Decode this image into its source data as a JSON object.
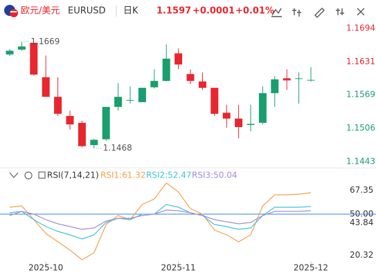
{
  "header": {
    "symbol_name": "欧元/美元",
    "symbol": "EURUSD",
    "period": "日K",
    "price": 1.1597,
    "change": "+0.0001",
    "change_pct": "+0.01%"
  },
  "chart_data": [
    {
      "type": "candlestick",
      "open": [
        1.1645,
        1.1654,
        1.1667,
        1.1602,
        1.1565,
        1.1529,
        1.1516,
        1.1474,
        1.1485,
        1.1546,
        1.1558,
        1.1555,
        1.1583,
        1.1595,
        1.1647,
        1.1608,
        1.1594,
        1.1582,
        1.1535,
        1.1524,
        1.1512,
        1.1516,
        1.1572,
        1.16,
        1.1599,
        1.1596
      ],
      "high": [
        1.1655,
        1.1669,
        1.1666,
        1.1643,
        1.1602,
        1.1539,
        1.152,
        1.1486,
        1.1546,
        1.1591,
        1.1585,
        1.1582,
        1.1617,
        1.1664,
        1.1656,
        1.1617,
        1.1611,
        1.1582,
        1.155,
        1.155,
        1.155,
        1.1585,
        1.1604,
        1.1617,
        1.1611,
        1.1621
      ],
      "low": [
        1.1642,
        1.1652,
        1.1605,
        1.1565,
        1.1529,
        1.1503,
        1.147,
        1.1468,
        1.1482,
        1.1539,
        1.1552,
        1.1555,
        1.1581,
        1.1594,
        1.1617,
        1.1589,
        1.1578,
        1.1529,
        1.1507,
        1.1487,
        1.15,
        1.1513,
        1.1546,
        1.1578,
        1.1552,
        1.1594
      ],
      "close": [
        1.1652,
        1.166,
        1.1607,
        1.1565,
        1.1533,
        1.1513,
        1.1472,
        1.1484,
        1.1546,
        1.1565,
        1.1559,
        1.1582,
        1.1595,
        1.1637,
        1.1626,
        1.1595,
        1.1582,
        1.1533,
        1.1524,
        1.1508,
        1.1514,
        1.1572,
        1.1598,
        1.1596,
        1.16,
        1.1597
      ],
      "up_color": "#1a9e6e",
      "down_color": "#e8262f",
      "annotations": [
        {
          "label": "1.1669"
        },
        {
          "label": "1.1468"
        }
      ],
      "ylim": [
        1.1435,
        1.1732
      ],
      "yticks": [
        1.1694,
        1.1631,
        1.1569,
        1.1506,
        1.1443
      ]
    },
    {
      "type": "line",
      "title": "RSI(7,14,21)",
      "categories": [
        null,
        null,
        null,
        "2025-10",
        null,
        null,
        null,
        null,
        null,
        null,
        null,
        null,
        null,
        null,
        "2025-11",
        null,
        null,
        null,
        null,
        null,
        null,
        null,
        null,
        null,
        null,
        "2025-12"
      ],
      "series": [
        {
          "name": "RSI1:61.32",
          "color": "#f5a04a",
          "values": [
            55,
            56,
            46,
            36,
            30,
            24,
            17,
            22,
            42.5,
            49,
            46,
            57,
            61,
            72.5,
            66,
            54,
            50,
            38.5,
            35,
            30,
            35,
            56,
            64,
            64,
            64.5,
            65.5
          ]
        },
        {
          "name": "RSI2:52.47",
          "color": "#3cc4d8",
          "values": [
            51,
            52,
            46,
            41,
            37.5,
            35,
            32,
            35,
            44,
            47,
            46,
            50,
            50,
            57,
            55,
            51,
            49,
            42.5,
            41,
            39,
            40,
            49,
            55,
            55,
            55,
            55.5
          ]
        },
        {
          "name": "RSI3:50.04",
          "color": "#a48ad8",
          "values": [
            49,
            52,
            50,
            46,
            43,
            41,
            39,
            40,
            45,
            47,
            47,
            49,
            50,
            53,
            52.5,
            51,
            49,
            46,
            44.5,
            43,
            44,
            49,
            52,
            52,
            52,
            52.5
          ]
        }
      ],
      "hline": 50,
      "hline_color": "#2f7df6",
      "ylim": [
        16,
        81
      ],
      "yticks": [
        67.35,
        {
          "value": 50,
          "label": "50.00"
        },
        43.84,
        20.32
      ]
    }
  ]
}
